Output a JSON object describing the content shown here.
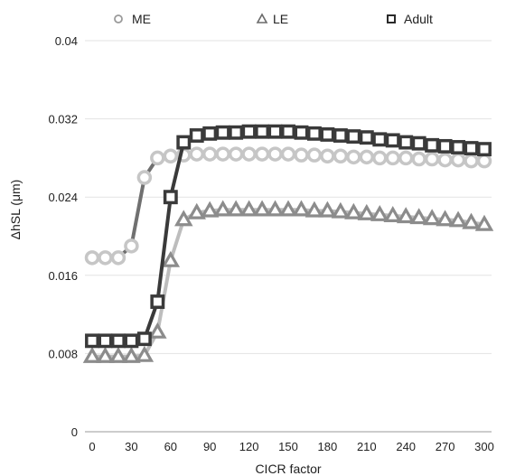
{
  "chart_data": {
    "type": "line",
    "xlabel": "CICR factor",
    "ylabel": "ΔhSL (μm)",
    "xlim": [
      0,
      300
    ],
    "ylim": [
      0,
      0.04
    ],
    "x_ticks": [
      "0",
      "30",
      "60",
      "90",
      "120",
      "150",
      "180",
      "210",
      "240",
      "270",
      "300"
    ],
    "y_ticks": [
      "0",
      "0.008",
      "0.016",
      "0.024",
      "0.032",
      "0.04"
    ],
    "grid": "horizontal",
    "legend_position": "top",
    "x": [
      0,
      10,
      20,
      30,
      40,
      50,
      60,
      70,
      80,
      90,
      100,
      110,
      120,
      130,
      140,
      150,
      160,
      170,
      180,
      190,
      200,
      210,
      220,
      230,
      240,
      250,
      260,
      270,
      280,
      290,
      300
    ],
    "series": [
      {
        "name": "ME",
        "marker": "circle",
        "color": "#c6c6c6",
        "line_color": "#707070",
        "values": [
          0.0178,
          0.0178,
          0.0178,
          0.019,
          0.026,
          0.028,
          0.0282,
          0.0283,
          0.0284,
          0.0284,
          0.0284,
          0.0284,
          0.0284,
          0.0284,
          0.0284,
          0.0284,
          0.0283,
          0.0283,
          0.0282,
          0.0282,
          0.0281,
          0.0281,
          0.028,
          0.028,
          0.028,
          0.0279,
          0.0279,
          0.0278,
          0.0278,
          0.0277,
          0.0277
        ]
      },
      {
        "name": "LE",
        "marker": "triangle",
        "color": "#8c8c8c",
        "line_color": "#bdbdbd",
        "values": [
          0.0077,
          0.0077,
          0.0077,
          0.0077,
          0.0078,
          0.0102,
          0.0175,
          0.0217,
          0.0224,
          0.0226,
          0.0227,
          0.0227,
          0.0227,
          0.0227,
          0.0227,
          0.0227,
          0.0227,
          0.0226,
          0.0226,
          0.0225,
          0.0224,
          0.0223,
          0.0222,
          0.0221,
          0.022,
          0.0219,
          0.0218,
          0.0217,
          0.0216,
          0.0214,
          0.0212
        ]
      },
      {
        "name": "Adult",
        "marker": "square",
        "color": "#3a3a3a",
        "line_color": "#3a3a3a",
        "values": [
          0.0093,
          0.0093,
          0.0093,
          0.0093,
          0.0095,
          0.0133,
          0.024,
          0.0296,
          0.0303,
          0.0305,
          0.0306,
          0.0306,
          0.0307,
          0.0307,
          0.0307,
          0.0307,
          0.0306,
          0.0305,
          0.0304,
          0.0303,
          0.0302,
          0.0301,
          0.0299,
          0.0298,
          0.0296,
          0.0295,
          0.0293,
          0.0292,
          0.0291,
          0.029,
          0.0289
        ]
      }
    ]
  }
}
